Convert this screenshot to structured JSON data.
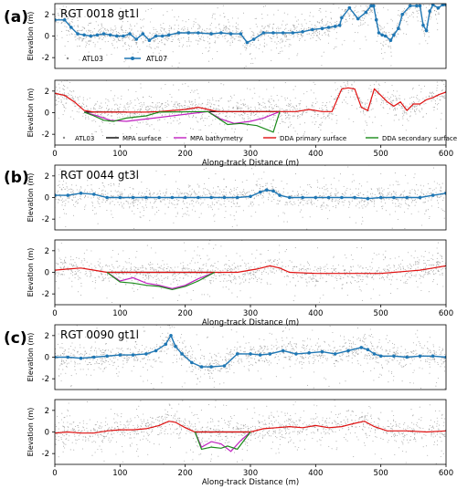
{
  "figure": {
    "panel_labels": [
      "(a)",
      "(b)",
      "(c)"
    ],
    "colors": {
      "atl03": "#8a8a8a",
      "atl07": "#1f77b4",
      "mpa_surface": "#000000",
      "mpa_bathymetry": "#c020c0",
      "dda_primary": "#e01010",
      "dda_secondary": "#1a8a1a"
    }
  },
  "chart_data": [
    {
      "panel": "(a)",
      "position": "top",
      "type": "line",
      "title": "RGT 0018 gt1l",
      "xlabel": "",
      "ylabel": "Elevation (m)",
      "xlim": [
        0,
        600
      ],
      "ylim": [
        -3,
        3
      ],
      "xticks": [],
      "yticks": [
        -2,
        0,
        2
      ],
      "grid": false,
      "legend": {
        "placement": "lower-left",
        "entries": [
          "ATL03",
          "ATL07"
        ]
      },
      "series": [
        {
          "name": "ATL07",
          "key": "atl07",
          "x": [
            0,
            15,
            25,
            35,
            45,
            55,
            65,
            75,
            85,
            95,
            105,
            115,
            125,
            135,
            145,
            155,
            165,
            175,
            190,
            205,
            220,
            240,
            255,
            270,
            285,
            295,
            305,
            320,
            335,
            350,
            365,
            380,
            395,
            410,
            420,
            430,
            437,
            440,
            452,
            465,
            477,
            485,
            489,
            493,
            497,
            502,
            507,
            515,
            520,
            527,
            533,
            545,
            555,
            560,
            565,
            570,
            575,
            580,
            588,
            595,
            600
          ],
          "y": [
            1.5,
            1.5,
            0.8,
            0.2,
            0.1,
            0.0,
            0.1,
            0.2,
            0.1,
            0.0,
            0.0,
            0.2,
            -0.3,
            0.2,
            -0.4,
            0.0,
            0.0,
            0.1,
            0.3,
            0.3,
            0.3,
            0.2,
            0.3,
            0.2,
            0.2,
            -0.6,
            -0.3,
            0.3,
            0.3,
            0.3,
            0.3,
            0.4,
            0.6,
            0.7,
            0.8,
            0.9,
            1.0,
            1.7,
            2.6,
            1.6,
            2.2,
            2.8,
            2.8,
            1.5,
            0.3,
            0.1,
            0.0,
            -0.4,
            0.1,
            0.7,
            2.0,
            2.8,
            2.8,
            2.8,
            1.0,
            0.5,
            2.3,
            2.9,
            2.6,
            2.9,
            2.9
          ]
        },
        {
          "name": "ATL03",
          "key": "atl03",
          "style": "scatter",
          "density": 1400,
          "spread": 1.0
        }
      ]
    },
    {
      "panel": "(a)",
      "position": "bottom",
      "type": "line",
      "title": "",
      "xlabel": "Along-track Distance (m)",
      "ylabel": "Elevation (m)",
      "xlim": [
        0,
        600
      ],
      "ylim": [
        -3,
        3
      ],
      "xticks": [
        0,
        100,
        200,
        300,
        400,
        500,
        600
      ],
      "yticks": [
        -2,
        0,
        2
      ],
      "grid": false,
      "legend": {
        "placement": "bottom",
        "entries": [
          "ATL03",
          "MPA surface",
          "MPA bathymetry",
          "DDA primary surface",
          "DDA secondary surface"
        ]
      },
      "series": [
        {
          "name": "MPA surface",
          "key": "mpa_surface",
          "x": [
            45,
            110,
            235,
            345
          ],
          "y": [
            0.05,
            0.05,
            0.1,
            0.1
          ],
          "segments": [
            [
              45,
              110
            ],
            [
              235,
              345
            ]
          ],
          "gap": [
            110,
            235
          ]
        },
        {
          "name": "MPA bathymetry",
          "key": "mpa_bathymetry",
          "x": [
            45,
            65,
            85,
            110,
            235,
            255,
            275,
            300,
            320,
            345
          ],
          "y": [
            0.05,
            -0.3,
            -0.7,
            -0.8,
            0.1,
            -0.6,
            -1.0,
            -0.8,
            -0.5,
            0.1
          ]
        },
        {
          "name": "DDA primary surface",
          "key": "dda_primary",
          "x": [
            0,
            15,
            30,
            45,
            60,
            75,
            90,
            105,
            120,
            140,
            160,
            180,
            200,
            220,
            235,
            250,
            275,
            300,
            320,
            345,
            370,
            390,
            410,
            425,
            440,
            450,
            460,
            470,
            480,
            490,
            500,
            510,
            520,
            530,
            540,
            550,
            560,
            570,
            580,
            590,
            600
          ],
          "y": [
            1.8,
            1.6,
            1.0,
            0.2,
            0.05,
            0.05,
            0.05,
            0.05,
            0.05,
            0.05,
            0.1,
            0.2,
            0.3,
            0.5,
            0.3,
            0.1,
            0.1,
            0.1,
            0.1,
            0.1,
            0.1,
            0.3,
            0.1,
            0.1,
            2.2,
            2.3,
            2.2,
            0.5,
            0.2,
            2.2,
            1.6,
            1.0,
            0.6,
            1.0,
            0.2,
            0.8,
            0.8,
            1.2,
            1.4,
            1.7,
            1.9
          ]
        },
        {
          "name": "DDA secondary surface",
          "key": "dda_secondary",
          "x": [
            45,
            60,
            75,
            90,
            110,
            140,
            160,
            235,
            250,
            265,
            285,
            310,
            335,
            345
          ],
          "y": [
            0.05,
            -0.3,
            -0.7,
            -0.8,
            -0.5,
            -0.3,
            0.05,
            0.1,
            -0.5,
            -1.1,
            -1.0,
            -1.2,
            -1.8,
            0.1
          ]
        },
        {
          "name": "ATL03",
          "key": "atl03",
          "style": "scatter",
          "density": 1400,
          "spread": 1.0
        }
      ]
    },
    {
      "panel": "(b)",
      "position": "top",
      "type": "line",
      "title": "RGT 0044 gt3l",
      "xlabel": "",
      "ylabel": "Elevation (m)",
      "xlim": [
        0,
        600
      ],
      "ylim": [
        -3,
        3
      ],
      "xticks": [],
      "yticks": [
        -2,
        0,
        2
      ],
      "grid": false,
      "series": [
        {
          "name": "ATL07",
          "key": "atl07",
          "x": [
            0,
            20,
            40,
            60,
            80,
            100,
            120,
            140,
            160,
            180,
            200,
            220,
            240,
            260,
            280,
            300,
            315,
            325,
            335,
            345,
            360,
            380,
            400,
            420,
            440,
            460,
            480,
            500,
            520,
            540,
            560,
            580,
            600
          ],
          "y": [
            0.2,
            0.2,
            0.4,
            0.3,
            0.0,
            0.0,
            0.0,
            0.0,
            0.0,
            0.0,
            0.0,
            0.0,
            0.0,
            0.0,
            0.0,
            0.1,
            0.5,
            0.7,
            0.6,
            0.2,
            0.0,
            0.0,
            0.0,
            0.0,
            0.0,
            0.0,
            -0.1,
            0.0,
            0.0,
            0.0,
            0.0,
            0.2,
            0.4
          ]
        },
        {
          "name": "ATL03",
          "key": "atl03",
          "style": "scatter",
          "density": 1200,
          "spread": 0.9
        }
      ]
    },
    {
      "panel": "(b)",
      "position": "bottom",
      "type": "line",
      "title": "",
      "xlabel": "Along-track Distance (m)",
      "ylabel": "Elevation (m)",
      "xlim": [
        0,
        600
      ],
      "ylim": [
        -3,
        3
      ],
      "xticks": [
        0,
        100,
        200,
        300,
        400,
        500,
        600
      ],
      "yticks": [
        -2,
        0,
        2
      ],
      "grid": false,
      "series": [
        {
          "name": "MPA surface",
          "key": "mpa_surface",
          "x": [
            80,
            245
          ],
          "y": [
            0.0,
            0.0
          ]
        },
        {
          "name": "MPA bathymetry",
          "key": "mpa_bathymetry",
          "x": [
            80,
            100,
            120,
            140,
            160,
            180,
            200,
            220,
            245
          ],
          "y": [
            0.0,
            -0.8,
            -0.5,
            -1.0,
            -1.2,
            -1.5,
            -1.2,
            -0.6,
            0.0
          ]
        },
        {
          "name": "DDA primary surface",
          "key": "dda_primary",
          "x": [
            0,
            20,
            40,
            60,
            80,
            100,
            140,
            180,
            220,
            245,
            280,
            310,
            330,
            345,
            360,
            400,
            440,
            480,
            500,
            520,
            540,
            560,
            580,
            600
          ],
          "y": [
            0.2,
            0.3,
            0.4,
            0.2,
            0.0,
            0.0,
            0.0,
            0.0,
            0.0,
            0.0,
            0.0,
            0.3,
            0.6,
            0.4,
            0.0,
            -0.1,
            -0.1,
            -0.1,
            -0.1,
            0.0,
            0.1,
            0.2,
            0.4,
            0.6
          ]
        },
        {
          "name": "DDA secondary surface",
          "key": "dda_secondary",
          "x": [
            80,
            100,
            120,
            140,
            160,
            180,
            200,
            220,
            245
          ],
          "y": [
            0.0,
            -0.9,
            -1.0,
            -1.2,
            -1.3,
            -1.6,
            -1.3,
            -0.8,
            0.0
          ]
        },
        {
          "name": "ATL03",
          "key": "atl03",
          "style": "scatter",
          "density": 1200,
          "spread": 0.9
        }
      ]
    },
    {
      "panel": "(c)",
      "position": "top",
      "type": "line",
      "title": "RGT 0090 gt1l",
      "xlabel": "",
      "ylabel": "Elevation (m)",
      "xlim": [
        0,
        600
      ],
      "ylim": [
        -3,
        3
      ],
      "xticks": [],
      "yticks": [
        -2,
        0,
        2
      ],
      "grid": false,
      "series": [
        {
          "name": "ATL07",
          "key": "atl07",
          "x": [
            0,
            20,
            40,
            60,
            80,
            100,
            120,
            140,
            155,
            170,
            178,
            185,
            195,
            210,
            225,
            240,
            260,
            280,
            300,
            315,
            330,
            350,
            370,
            390,
            410,
            430,
            450,
            470,
            480,
            490,
            500,
            520,
            540,
            560,
            580,
            600
          ],
          "y": [
            0.0,
            0.0,
            -0.1,
            0.0,
            0.1,
            0.2,
            0.2,
            0.3,
            0.6,
            1.2,
            2.0,
            1.0,
            0.3,
            -0.5,
            -0.9,
            -0.9,
            -0.8,
            0.3,
            0.3,
            0.2,
            0.3,
            0.6,
            0.3,
            0.4,
            0.5,
            0.3,
            0.6,
            0.9,
            0.7,
            0.3,
            0.1,
            0.1,
            0.0,
            0.1,
            0.1,
            0.0
          ]
        },
        {
          "name": "ATL03",
          "key": "atl03",
          "style": "scatter",
          "density": 1300,
          "spread": 1.0
        }
      ]
    },
    {
      "panel": "(c)",
      "position": "bottom",
      "type": "line",
      "title": "",
      "xlabel": "Along-track Distance (m)",
      "ylabel": "Elevation (m)",
      "xlim": [
        0,
        600
      ],
      "ylim": [
        -3,
        3
      ],
      "xticks": [
        0,
        100,
        200,
        300,
        400,
        500,
        600
      ],
      "yticks": [
        -2,
        0,
        2
      ],
      "grid": false,
      "series": [
        {
          "name": "MPA surface",
          "key": "mpa_surface",
          "x": [
            215,
            300
          ],
          "y": [
            0.0,
            0.0
          ]
        },
        {
          "name": "MPA bathymetry",
          "key": "mpa_bathymetry",
          "x": [
            215,
            225,
            240,
            255,
            270,
            285,
            300
          ],
          "y": [
            0.0,
            -1.4,
            -0.9,
            -1.1,
            -1.8,
            -0.8,
            0.0
          ]
        },
        {
          "name": "DDA primary surface",
          "key": "dda_primary",
          "x": [
            0,
            20,
            40,
            60,
            80,
            100,
            120,
            140,
            160,
            175,
            185,
            200,
            215,
            240,
            270,
            300,
            320,
            340,
            360,
            380,
            400,
            420,
            440,
            460,
            475,
            490,
            510,
            540,
            570,
            600
          ],
          "y": [
            -0.1,
            0.0,
            -0.1,
            -0.1,
            0.1,
            0.2,
            0.2,
            0.3,
            0.6,
            1.0,
            0.9,
            0.4,
            0.0,
            0.0,
            0.0,
            0.0,
            0.3,
            0.4,
            0.5,
            0.4,
            0.6,
            0.4,
            0.5,
            0.8,
            1.0,
            0.5,
            0.1,
            0.1,
            0.0,
            0.1
          ]
        },
        {
          "name": "DDA secondary surface",
          "key": "dda_secondary",
          "x": [
            215,
            225,
            240,
            255,
            265,
            280,
            300
          ],
          "y": [
            0.0,
            -1.6,
            -1.4,
            -1.5,
            -1.3,
            -1.6,
            0.0
          ]
        },
        {
          "name": "ATL03",
          "key": "atl03",
          "style": "scatter",
          "density": 1300,
          "spread": 1.0
        }
      ]
    }
  ]
}
